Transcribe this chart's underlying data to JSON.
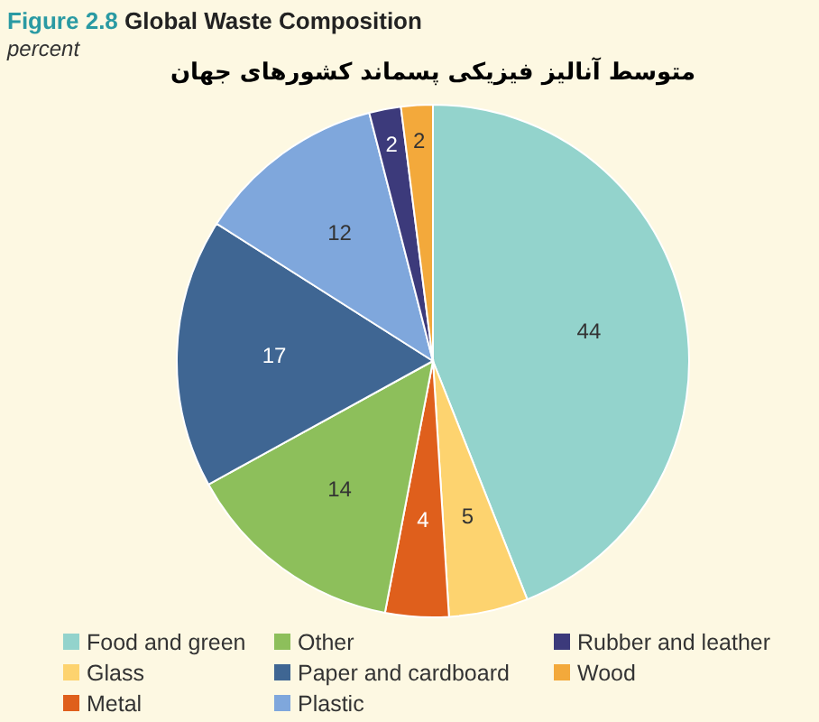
{
  "chart_data": {
    "type": "pie",
    "title": "Figure 2.8 **Global Waste Composition**",
    "subtitle": "percent",
    "annotations": [
      "متوسط آنالیز فیزیکی پسماند کشورهای جهان"
    ],
    "categories": [
      "Food and green",
      "Glass",
      "Metal",
      "Other",
      "Paper and cardboard",
      "Plastic",
      "Rubber and leather",
      "Wood"
    ],
    "values": [
      44,
      5,
      4,
      14,
      17,
      12,
      2,
      2
    ],
    "colors": [
      "#93d3cc",
      "#fdd36f",
      "#df5f1c",
      "#8dbf5b",
      "#3f6693",
      "#7fa7dc",
      "#3c3a7b",
      "#f3a93b"
    ],
    "data_labels": true,
    "legend": "bottom"
  }
}
